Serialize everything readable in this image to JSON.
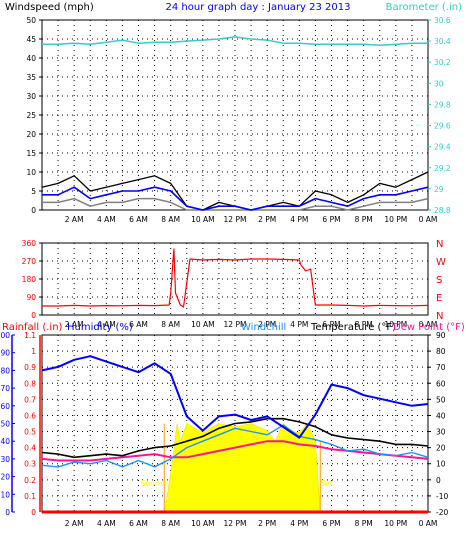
{
  "chart_data": [
    {
      "type": "line",
      "title": "24 hour graph day : January 23 2013",
      "ylabel_left": "Windspeed (mph)",
      "ylabel_right": "Barometer (.in)",
      "x_ticks": [
        "2 AM",
        "4 AM",
        "6 AM",
        "8 AM",
        "10 AM",
        "12 PM",
        "2 PM",
        "4 PM",
        "6 PM",
        "8 PM",
        "10 PM",
        "0 AM"
      ],
      "ylim_left": [
        0,
        50
      ],
      "yticks_left": [
        "0",
        "5",
        "10",
        "15",
        "20",
        "25",
        "30",
        "35",
        "40",
        "45",
        "50"
      ],
      "ylim_right": [
        28.8,
        30.6
      ],
      "yticks_right": [
        "28.8",
        "29",
        "29.2",
        "29.4",
        "29.6",
        "29.8",
        "30",
        "30.2",
        "30.4",
        "30.6"
      ],
      "grid": true,
      "colors": {
        "barometer": "#33cccc",
        "wind_gust": "#000000",
        "wind_avg": "#0000ff",
        "wind_low": "#808080"
      },
      "series": [
        {
          "name": "Barometer",
          "axis": "right",
          "x": [
            0,
            1,
            2,
            3,
            4,
            5,
            6,
            7,
            8,
            9,
            10,
            11,
            12,
            13,
            14,
            15,
            16,
            17,
            18,
            19,
            20,
            21,
            22,
            23,
            24
          ],
          "values": [
            30.37,
            30.37,
            30.38,
            30.37,
            30.39,
            30.41,
            30.38,
            30.39,
            30.39,
            30.4,
            30.41,
            30.42,
            30.44,
            30.42,
            30.41,
            30.38,
            30.38,
            30.37,
            30.37,
            30.37,
            30.37,
            30.36,
            30.37,
            30.38,
            30.38
          ]
        },
        {
          "name": "Wind gust",
          "axis": "left",
          "x": [
            0,
            1,
            2,
            3,
            4,
            5,
            6,
            7,
            8,
            9,
            10,
            11,
            12,
            13,
            14,
            15,
            16,
            17,
            18,
            19,
            20,
            21,
            22,
            23,
            24
          ],
          "values": [
            6,
            7,
            9,
            5,
            6,
            7,
            8,
            9,
            7,
            1,
            0,
            2,
            1,
            0,
            1,
            2,
            1,
            5,
            4,
            2,
            4,
            7,
            6,
            8,
            10
          ]
        },
        {
          "name": "Wind average",
          "axis": "left",
          "x": [
            0,
            1,
            2,
            3,
            4,
            5,
            6,
            7,
            8,
            9,
            10,
            11,
            12,
            13,
            14,
            15,
            16,
            17,
            18,
            19,
            20,
            21,
            22,
            23,
            24
          ],
          "values": [
            4,
            4,
            6,
            3,
            4,
            5,
            5,
            6,
            5,
            1,
            0,
            1,
            1,
            0,
            1,
            1,
            1,
            3,
            2,
            1,
            3,
            4,
            4,
            5,
            6
          ]
        },
        {
          "name": "Wind low",
          "axis": "left",
          "x": [
            0,
            1,
            2,
            3,
            4,
            5,
            6,
            7,
            8,
            9,
            10,
            11,
            12,
            13,
            14,
            15,
            16,
            17,
            18,
            19,
            20,
            21,
            22,
            23,
            24
          ],
          "values": [
            2,
            2,
            3,
            1,
            2,
            2,
            3,
            3,
            2,
            0,
            0,
            0,
            0,
            0,
            0,
            0,
            0,
            1,
            1,
            0,
            1,
            2,
            2,
            2,
            3
          ]
        }
      ]
    },
    {
      "type": "line",
      "yticks_left": [
        "0",
        "90",
        "180",
        "270",
        "360"
      ],
      "ylim_left": [
        0,
        360
      ],
      "yticks_right": [
        "N",
        "E",
        "S",
        "W",
        "N"
      ],
      "x_ticks": [
        "2 AM",
        "4 AM",
        "6 AM",
        "8 AM",
        "10 AM",
        "12 PM",
        "2 PM",
        "4 PM",
        "6 PM",
        "8 PM",
        "10 PM",
        "0 AM"
      ],
      "grid": true,
      "colors": {
        "direction": "#ff0000",
        "labels": "#ff0000"
      },
      "series": [
        {
          "name": "Wind direction",
          "x": [
            0,
            1,
            2,
            3,
            4,
            5,
            6,
            7,
            7.9,
            8.0,
            8.2,
            8.3,
            8.6,
            8.8,
            9.2,
            10,
            11,
            12,
            13,
            14,
            15,
            16,
            16.1,
            16.4,
            16.7,
            17,
            18,
            19,
            20,
            21,
            22,
            23,
            24
          ],
          "values": [
            45,
            45,
            48,
            45,
            47,
            46,
            48,
            47,
            50,
            110,
            330,
            110,
            50,
            40,
            280,
            275,
            278,
            275,
            280,
            280,
            278,
            275,
            250,
            220,
            230,
            50,
            50,
            48,
            45,
            48,
            47,
            46,
            48
          ]
        }
      ]
    },
    {
      "type": "line",
      "xlabel": "",
      "labels": {
        "rainfall": "Rainfall (.in)",
        "humidity": "Humidity (%)",
        "windchill": "Windchill",
        "temperature": "Temperature (°F)",
        "dewpoint": "Dew Point (°F)"
      },
      "annotations": [
        "Sunrise",
        "Set"
      ],
      "x_ticks": [
        "2 AM",
        "4 AM",
        "6 AM",
        "8 AM",
        "10 AM",
        "12 PM",
        "2 PM",
        "4 PM",
        "6 PM",
        "8 PM",
        "10 PM",
        "0 AM"
      ],
      "ylim_humidity": [
        0,
        100
      ],
      "yticks_humidity": [
        "0",
        "10",
        "20",
        "30",
        "40",
        "50",
        "60",
        "70",
        "80",
        "90",
        "100"
      ],
      "ylim_rain": [
        0,
        1.1
      ],
      "yticks_rain": [
        "0",
        "0.1",
        "0.2",
        "0.3",
        "0.4",
        "0.5",
        "0.6",
        "0.7",
        "0.8",
        "0.9",
        "1",
        "1.1"
      ],
      "ylim_temp": [
        -20,
        90
      ],
      "yticks_temp": [
        "-20",
        "-10",
        "0",
        "10",
        "20",
        "30",
        "40",
        "50",
        "60",
        "70",
        "80",
        "90"
      ],
      "grid": true,
      "colors": {
        "rainfall": "#ff0000",
        "humidity": "#0000ff",
        "windchill": "#1e90ff",
        "temperature": "#000000",
        "dewpoint": "#ff1493",
        "solar": "#ffff00",
        "daylight_line": "#ff9900"
      },
      "series": [
        {
          "name": "Humidity",
          "axis": "humidity",
          "x": [
            0,
            1,
            2,
            3,
            4,
            5,
            6,
            7,
            8,
            9,
            10,
            11,
            12,
            13,
            14,
            15,
            16,
            17,
            18,
            19,
            20,
            21,
            22,
            23,
            24
          ],
          "values": [
            80,
            82,
            86,
            88,
            85,
            82,
            79,
            84,
            78,
            54,
            46,
            54,
            55,
            52,
            54,
            48,
            42,
            55,
            72,
            70,
            66,
            64,
            62,
            60,
            61
          ]
        },
        {
          "name": "Temperature",
          "axis": "temp",
          "x": [
            0,
            1,
            2,
            3,
            4,
            5,
            6,
            7,
            8,
            9,
            10,
            11,
            12,
            13,
            14,
            15,
            16,
            17,
            18,
            19,
            20,
            21,
            22,
            23,
            24
          ],
          "values": [
            17,
            16,
            14,
            15,
            16,
            15,
            18,
            20,
            21,
            24,
            27,
            32,
            35,
            36,
            38,
            38,
            36,
            33,
            28,
            26,
            25,
            24,
            22,
            22,
            21
          ]
        },
        {
          "name": "Windchill",
          "axis": "temp",
          "x": [
            0,
            1,
            2,
            3,
            4,
            5,
            6,
            7,
            8,
            9,
            10,
            11,
            12,
            13,
            14,
            15,
            16,
            17,
            18,
            19,
            20,
            21,
            22,
            23,
            24
          ],
          "values": [
            9,
            8,
            11,
            10,
            12,
            8,
            12,
            8,
            13,
            20,
            24,
            28,
            32,
            30,
            28,
            34,
            27,
            25,
            22,
            18,
            19,
            16,
            15,
            17,
            14
          ]
        },
        {
          "name": "Dew Point",
          "axis": "temp",
          "x": [
            0,
            1,
            2,
            3,
            4,
            5,
            6,
            7,
            8,
            9,
            10,
            11,
            12,
            13,
            14,
            15,
            16,
            17,
            18,
            19,
            20,
            21,
            22,
            23,
            24
          ],
          "values": [
            13,
            12,
            12,
            12,
            13,
            14,
            15,
            16,
            14,
            14,
            16,
            18,
            20,
            22,
            24,
            24,
            22,
            21,
            19,
            18,
            17,
            16,
            15,
            14,
            13
          ]
        },
        {
          "name": "Solar",
          "axis": "humidity",
          "x": [
            7.6,
            7.8,
            8,
            8.2,
            8.4,
            8.6,
            9,
            10,
            11,
            12,
            13,
            14,
            14.5,
            15,
            15.5,
            16,
            16.5,
            17,
            17.3
          ],
          "values": [
            0,
            10,
            22,
            35,
            50,
            40,
            50,
            45,
            50,
            48,
            50,
            46,
            40,
            50,
            45,
            45,
            50,
            40,
            0
          ]
        },
        {
          "name": "Rainfall",
          "axis": "rain",
          "x": [
            0,
            24
          ],
          "values": [
            0,
            0
          ]
        }
      ]
    }
  ]
}
